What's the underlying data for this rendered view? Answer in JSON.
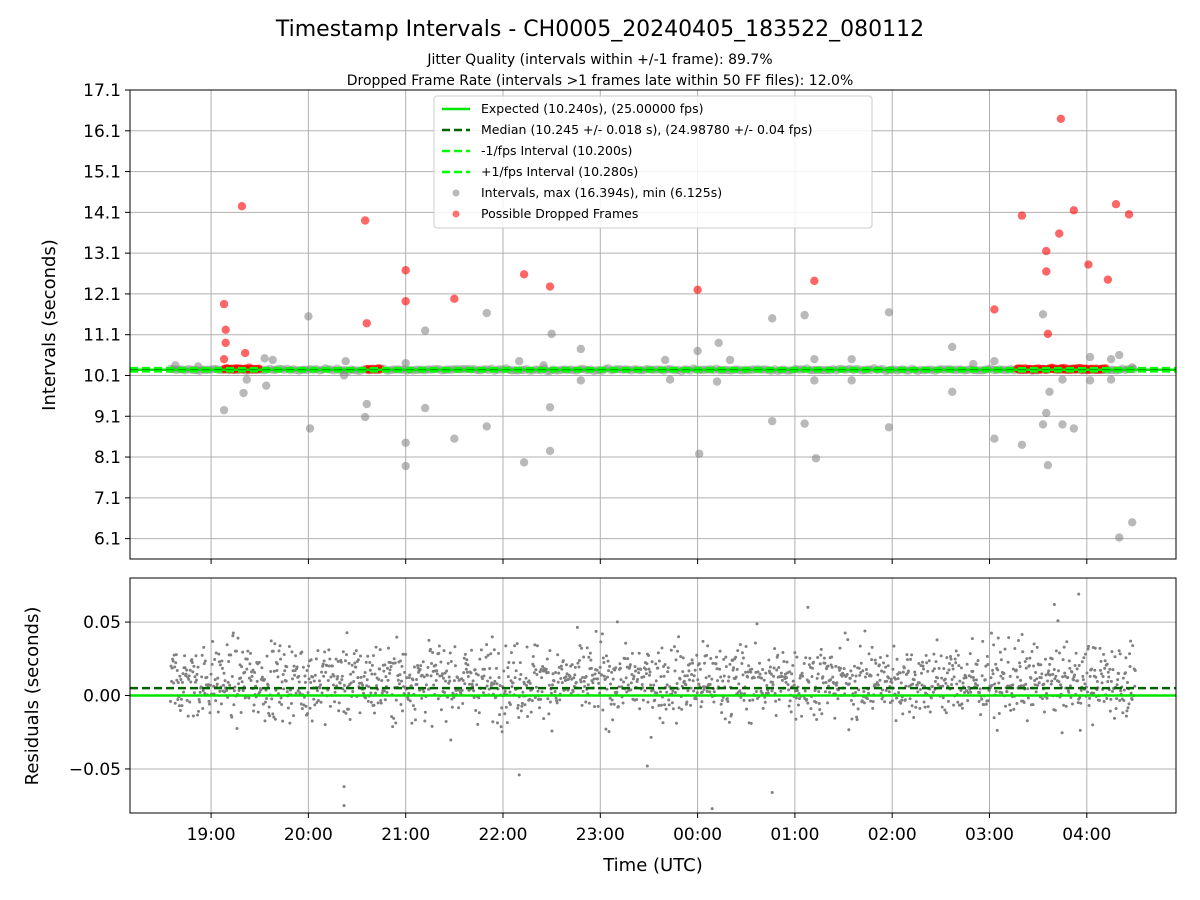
{
  "figure": {
    "title": "Timestamp Intervals - CH0005_20240405_183522_080112",
    "subtitle1": "Jitter Quality (intervals within +/-1 frame): 89.7%",
    "subtitle2": "Dropped Frame Rate (intervals >1 frames late within 50 FF files): 12.0%"
  },
  "colors": {
    "expected": "#00e600",
    "median": "#006400",
    "fps_band": "#00ff00",
    "intervals": "#808080",
    "dropped": "#ff0000",
    "grid": "#b0b0b0"
  },
  "chart_data": [
    {
      "type": "scatter",
      "ylabel": "Intervals (seconds)",
      "xlabel": "",
      "ylim": [
        5.6,
        17.1
      ],
      "yticks": [
        "6.1",
        "7.1",
        "8.1",
        "9.1",
        "10.1",
        "11.1",
        "12.1",
        "13.1",
        "14.1",
        "15.1",
        "16.1",
        "17.1"
      ],
      "xlim": [
        "18:10",
        "04:55"
      ],
      "grid": true,
      "legend_position": "top-center",
      "legend": [
        {
          "label": "Expected (10.240s), (25.00000 fps)",
          "style": "solid",
          "color": "#00e600"
        },
        {
          "label": "Median (10.245 +/- 0.018 s), (24.98780 +/- 0.04 fps)",
          "style": "dashed",
          "color": "#006400"
        },
        {
          "label": "-1/fps Interval (10.200s)",
          "style": "dashed",
          "color": "#00ff00"
        },
        {
          "label": "+1/fps Interval (10.280s)",
          "style": "dashed",
          "color": "#00ff00"
        },
        {
          "label": "Intervals, max (16.394s), min (6.125s)",
          "style": "marker",
          "color": "#808080"
        },
        {
          "label": "Possible Dropped Frames",
          "style": "marker",
          "color": "#ff0000"
        }
      ],
      "reference_lines": [
        {
          "name": "Expected",
          "y": 10.24
        },
        {
          "name": "Median",
          "y": 10.245
        },
        {
          "name": "-1/fps",
          "y": 10.2
        },
        {
          "name": "+1/fps",
          "y": 10.28
        }
      ],
      "intervals_outliers": [
        {
          "x": "18:38",
          "y": 10.35
        },
        {
          "x": "18:52",
          "y": 10.32
        },
        {
          "x": "19:08",
          "y": 9.25
        },
        {
          "x": "19:20",
          "y": 9.67
        },
        {
          "x": "19:22",
          "y": 10.0
        },
        {
          "x": "19:33",
          "y": 10.52
        },
        {
          "x": "19:34",
          "y": 9.85
        },
        {
          "x": "19:38",
          "y": 10.48
        },
        {
          "x": "20:00",
          "y": 11.55
        },
        {
          "x": "20:01",
          "y": 8.8
        },
        {
          "x": "20:22",
          "y": 10.1
        },
        {
          "x": "20:23",
          "y": 10.45
        },
        {
          "x": "20:35",
          "y": 9.08
        },
        {
          "x": "20:36",
          "y": 9.4
        },
        {
          "x": "21:00",
          "y": 8.45
        },
        {
          "x": "21:00",
          "y": 7.88
        },
        {
          "x": "21:00",
          "y": 10.4
        },
        {
          "x": "21:12",
          "y": 11.2
        },
        {
          "x": "21:12",
          "y": 9.3
        },
        {
          "x": "21:30",
          "y": 8.55
        },
        {
          "x": "21:50",
          "y": 11.63
        },
        {
          "x": "21:50",
          "y": 8.85
        },
        {
          "x": "22:10",
          "y": 10.45
        },
        {
          "x": "22:13",
          "y": 7.97
        },
        {
          "x": "22:25",
          "y": 10.35
        },
        {
          "x": "22:30",
          "y": 11.12
        },
        {
          "x": "22:29",
          "y": 9.32
        },
        {
          "x": "22:29",
          "y": 8.25
        },
        {
          "x": "22:48",
          "y": 10.75
        },
        {
          "x": "22:48",
          "y": 9.98
        },
        {
          "x": "23:40",
          "y": 10.48
        },
        {
          "x": "23:43",
          "y": 10.0
        },
        {
          "x": "00:00",
          "y": 10.7
        },
        {
          "x": "00:01",
          "y": 8.18
        },
        {
          "x": "00:13",
          "y": 10.9
        },
        {
          "x": "00:12",
          "y": 9.95
        },
        {
          "x": "00:20",
          "y": 10.48
        },
        {
          "x": "00:46",
          "y": 11.5
        },
        {
          "x": "00:46",
          "y": 8.98
        },
        {
          "x": "01:12",
          "y": 10.5
        },
        {
          "x": "01:12",
          "y": 9.98
        },
        {
          "x": "01:06",
          "y": 11.58
        },
        {
          "x": "01:06",
          "y": 8.92
        },
        {
          "x": "01:13",
          "y": 8.07
        },
        {
          "x": "01:35",
          "y": 10.5
        },
        {
          "x": "01:35",
          "y": 9.98
        },
        {
          "x": "01:58",
          "y": 11.65
        },
        {
          "x": "01:58",
          "y": 8.83
        },
        {
          "x": "02:37",
          "y": 10.8
        },
        {
          "x": "02:37",
          "y": 9.7
        },
        {
          "x": "02:50",
          "y": 10.38
        },
        {
          "x": "03:03",
          "y": 8.55
        },
        {
          "x": "03:03",
          "y": 10.45
        },
        {
          "x": "03:20",
          "y": 8.4
        },
        {
          "x": "03:33",
          "y": 11.6
        },
        {
          "x": "03:33",
          "y": 8.9
        },
        {
          "x": "03:35",
          "y": 9.18
        },
        {
          "x": "03:36",
          "y": 7.9
        },
        {
          "x": "03:37",
          "y": 9.7
        },
        {
          "x": "03:45",
          "y": 8.9
        },
        {
          "x": "03:52",
          "y": 8.8
        },
        {
          "x": "03:45",
          "y": 10.0
        },
        {
          "x": "04:02",
          "y": 10.55
        },
        {
          "x": "04:02",
          "y": 9.98
        },
        {
          "x": "04:15",
          "y": 10.5
        },
        {
          "x": "04:15",
          "y": 10.0
        },
        {
          "x": "04:20",
          "y": 6.125
        },
        {
          "x": "04:20",
          "y": 10.6
        },
        {
          "x": "04:28",
          "y": 6.5
        },
        {
          "x": "04:28",
          "y": 10.3
        }
      ],
      "dropped_frames": [
        {
          "x": "19:08",
          "y": 11.85
        },
        {
          "x": "19:09",
          "y": 11.22
        },
        {
          "x": "19:09",
          "y": 10.9
        },
        {
          "x": "19:08",
          "y": 10.5
        },
        {
          "x": "19:19",
          "y": 14.25
        },
        {
          "x": "19:21",
          "y": 10.65
        },
        {
          "x": "20:35",
          "y": 13.9
        },
        {
          "x": "20:36",
          "y": 11.38
        },
        {
          "x": "21:00",
          "y": 12.68
        },
        {
          "x": "21:00",
          "y": 11.92
        },
        {
          "x": "21:30",
          "y": 11.98
        },
        {
          "x": "22:13",
          "y": 12.58
        },
        {
          "x": "22:29",
          "y": 12.28
        },
        {
          "x": "00:00",
          "y": 12.2
        },
        {
          "x": "01:12",
          "y": 12.42
        },
        {
          "x": "03:03",
          "y": 11.72
        },
        {
          "x": "03:20",
          "y": 14.02
        },
        {
          "x": "03:35",
          "y": 13.15
        },
        {
          "x": "03:35",
          "y": 12.65
        },
        {
          "x": "03:36",
          "y": 11.12
        },
        {
          "x": "03:43",
          "y": 13.58
        },
        {
          "x": "03:44",
          "y": 16.394
        },
        {
          "x": "03:52",
          "y": 14.15
        },
        {
          "x": "04:01",
          "y": 12.82
        },
        {
          "x": "04:13",
          "y": 12.45
        },
        {
          "x": "04:18",
          "y": 14.3
        },
        {
          "x": "04:26",
          "y": 14.05
        }
      ],
      "dropped_clusters": [
        {
          "from": "19:08",
          "to": "19:30"
        },
        {
          "from": "20:36",
          "to": "20:45"
        },
        {
          "from": "03:17",
          "to": "04:12"
        }
      ]
    },
    {
      "type": "scatter",
      "ylabel": "Residuals (seconds)",
      "xlabel": "Time (UTC)",
      "ylim": [
        -0.08,
        0.08
      ],
      "yticks": [
        "−0.05",
        "0.00",
        "0.05"
      ],
      "xticks": [
        "19:00",
        "20:00",
        "21:00",
        "22:00",
        "23:00",
        "00:00",
        "01:00",
        "02:00",
        "03:00",
        "04:00"
      ],
      "xlim": [
        "18:10",
        "04:55"
      ],
      "grid": true,
      "reference_lines": [
        {
          "name": "Expected",
          "y": 0.0
        },
        {
          "name": "Median",
          "y": 0.005
        }
      ],
      "residual_spread": {
        "from": "18:35",
        "to": "04:30",
        "center": 0.01,
        "typical_min": -0.03,
        "typical_max": 0.05
      },
      "residual_extremes": [
        {
          "x": "20:22",
          "y": -0.062
        },
        {
          "x": "20:22",
          "y": -0.075
        },
        {
          "x": "22:10",
          "y": -0.054
        },
        {
          "x": "00:09",
          "y": -0.077
        },
        {
          "x": "00:46",
          "y": -0.066
        },
        {
          "x": "23:29",
          "y": -0.048
        },
        {
          "x": "03:55",
          "y": 0.069
        },
        {
          "x": "01:08",
          "y": 0.06
        },
        {
          "x": "03:40",
          "y": 0.062
        }
      ]
    }
  ]
}
